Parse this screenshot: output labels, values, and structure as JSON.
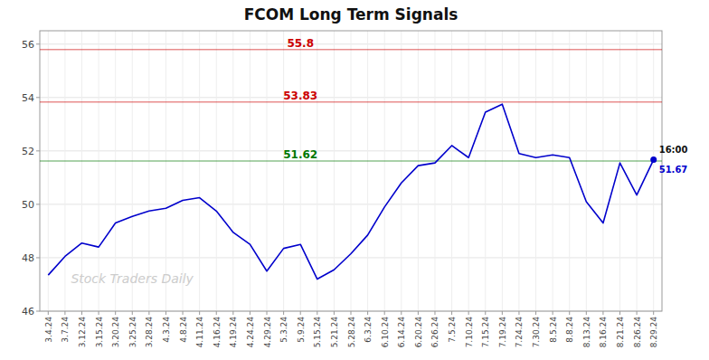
{
  "chart_data": {
    "type": "line",
    "title": "FCOM Long Term Signals",
    "color": "#0000cc",
    "categories": [
      "3.4.24",
      "3.7.24",
      "3.12.24",
      "3.15.24",
      "3.20.24",
      "3.25.24",
      "3.28.24",
      "4.3.24",
      "4.8.24",
      "4.11.24",
      "4.16.24",
      "4.19.24",
      "4.24.24",
      "4.29.24",
      "5.3.24",
      "5.9.24",
      "5.15.24",
      "5.21.24",
      "5.28.24",
      "6.3.24",
      "6.10.24",
      "6.14.24",
      "6.20.24",
      "6.26.24",
      "7.5.24",
      "7.10.24",
      "7.15.24",
      "7.19.24",
      "7.24.24",
      "7.30.24",
      "8.5.24",
      "8.8.24",
      "8.13.24",
      "8.16.24",
      "8.21.24",
      "8.26.24",
      "8.29.24"
    ],
    "values": [
      47.35,
      48.05,
      48.55,
      48.4,
      49.3,
      49.55,
      49.75,
      49.85,
      50.15,
      50.25,
      49.75,
      48.95,
      48.5,
      47.5,
      48.35,
      48.5,
      47.2,
      47.55,
      48.15,
      48.85,
      49.9,
      50.8,
      51.45,
      51.55,
      52.2,
      51.75,
      53.45,
      53.75,
      51.9,
      51.75,
      51.85,
      51.75,
      50.1,
      49.3,
      51.55,
      50.35,
      51.67
    ],
    "ylim": [
      46,
      56.5
    ],
    "yticks": [
      46,
      48,
      50,
      52,
      54,
      56
    ],
    "grid": true,
    "reference_lines": [
      {
        "value": 55.8,
        "label": "55.8",
        "color": "#cc0000"
      },
      {
        "value": 53.83,
        "label": "53.83",
        "color": "#cc0000"
      },
      {
        "value": 51.62,
        "label": "51.62",
        "color": "#007700"
      }
    ],
    "annotations": [
      {
        "text": "16:00"
      },
      {
        "text": "51.67",
        "color": "#0000cc"
      }
    ],
    "watermark": "Stock Traders Daily"
  }
}
